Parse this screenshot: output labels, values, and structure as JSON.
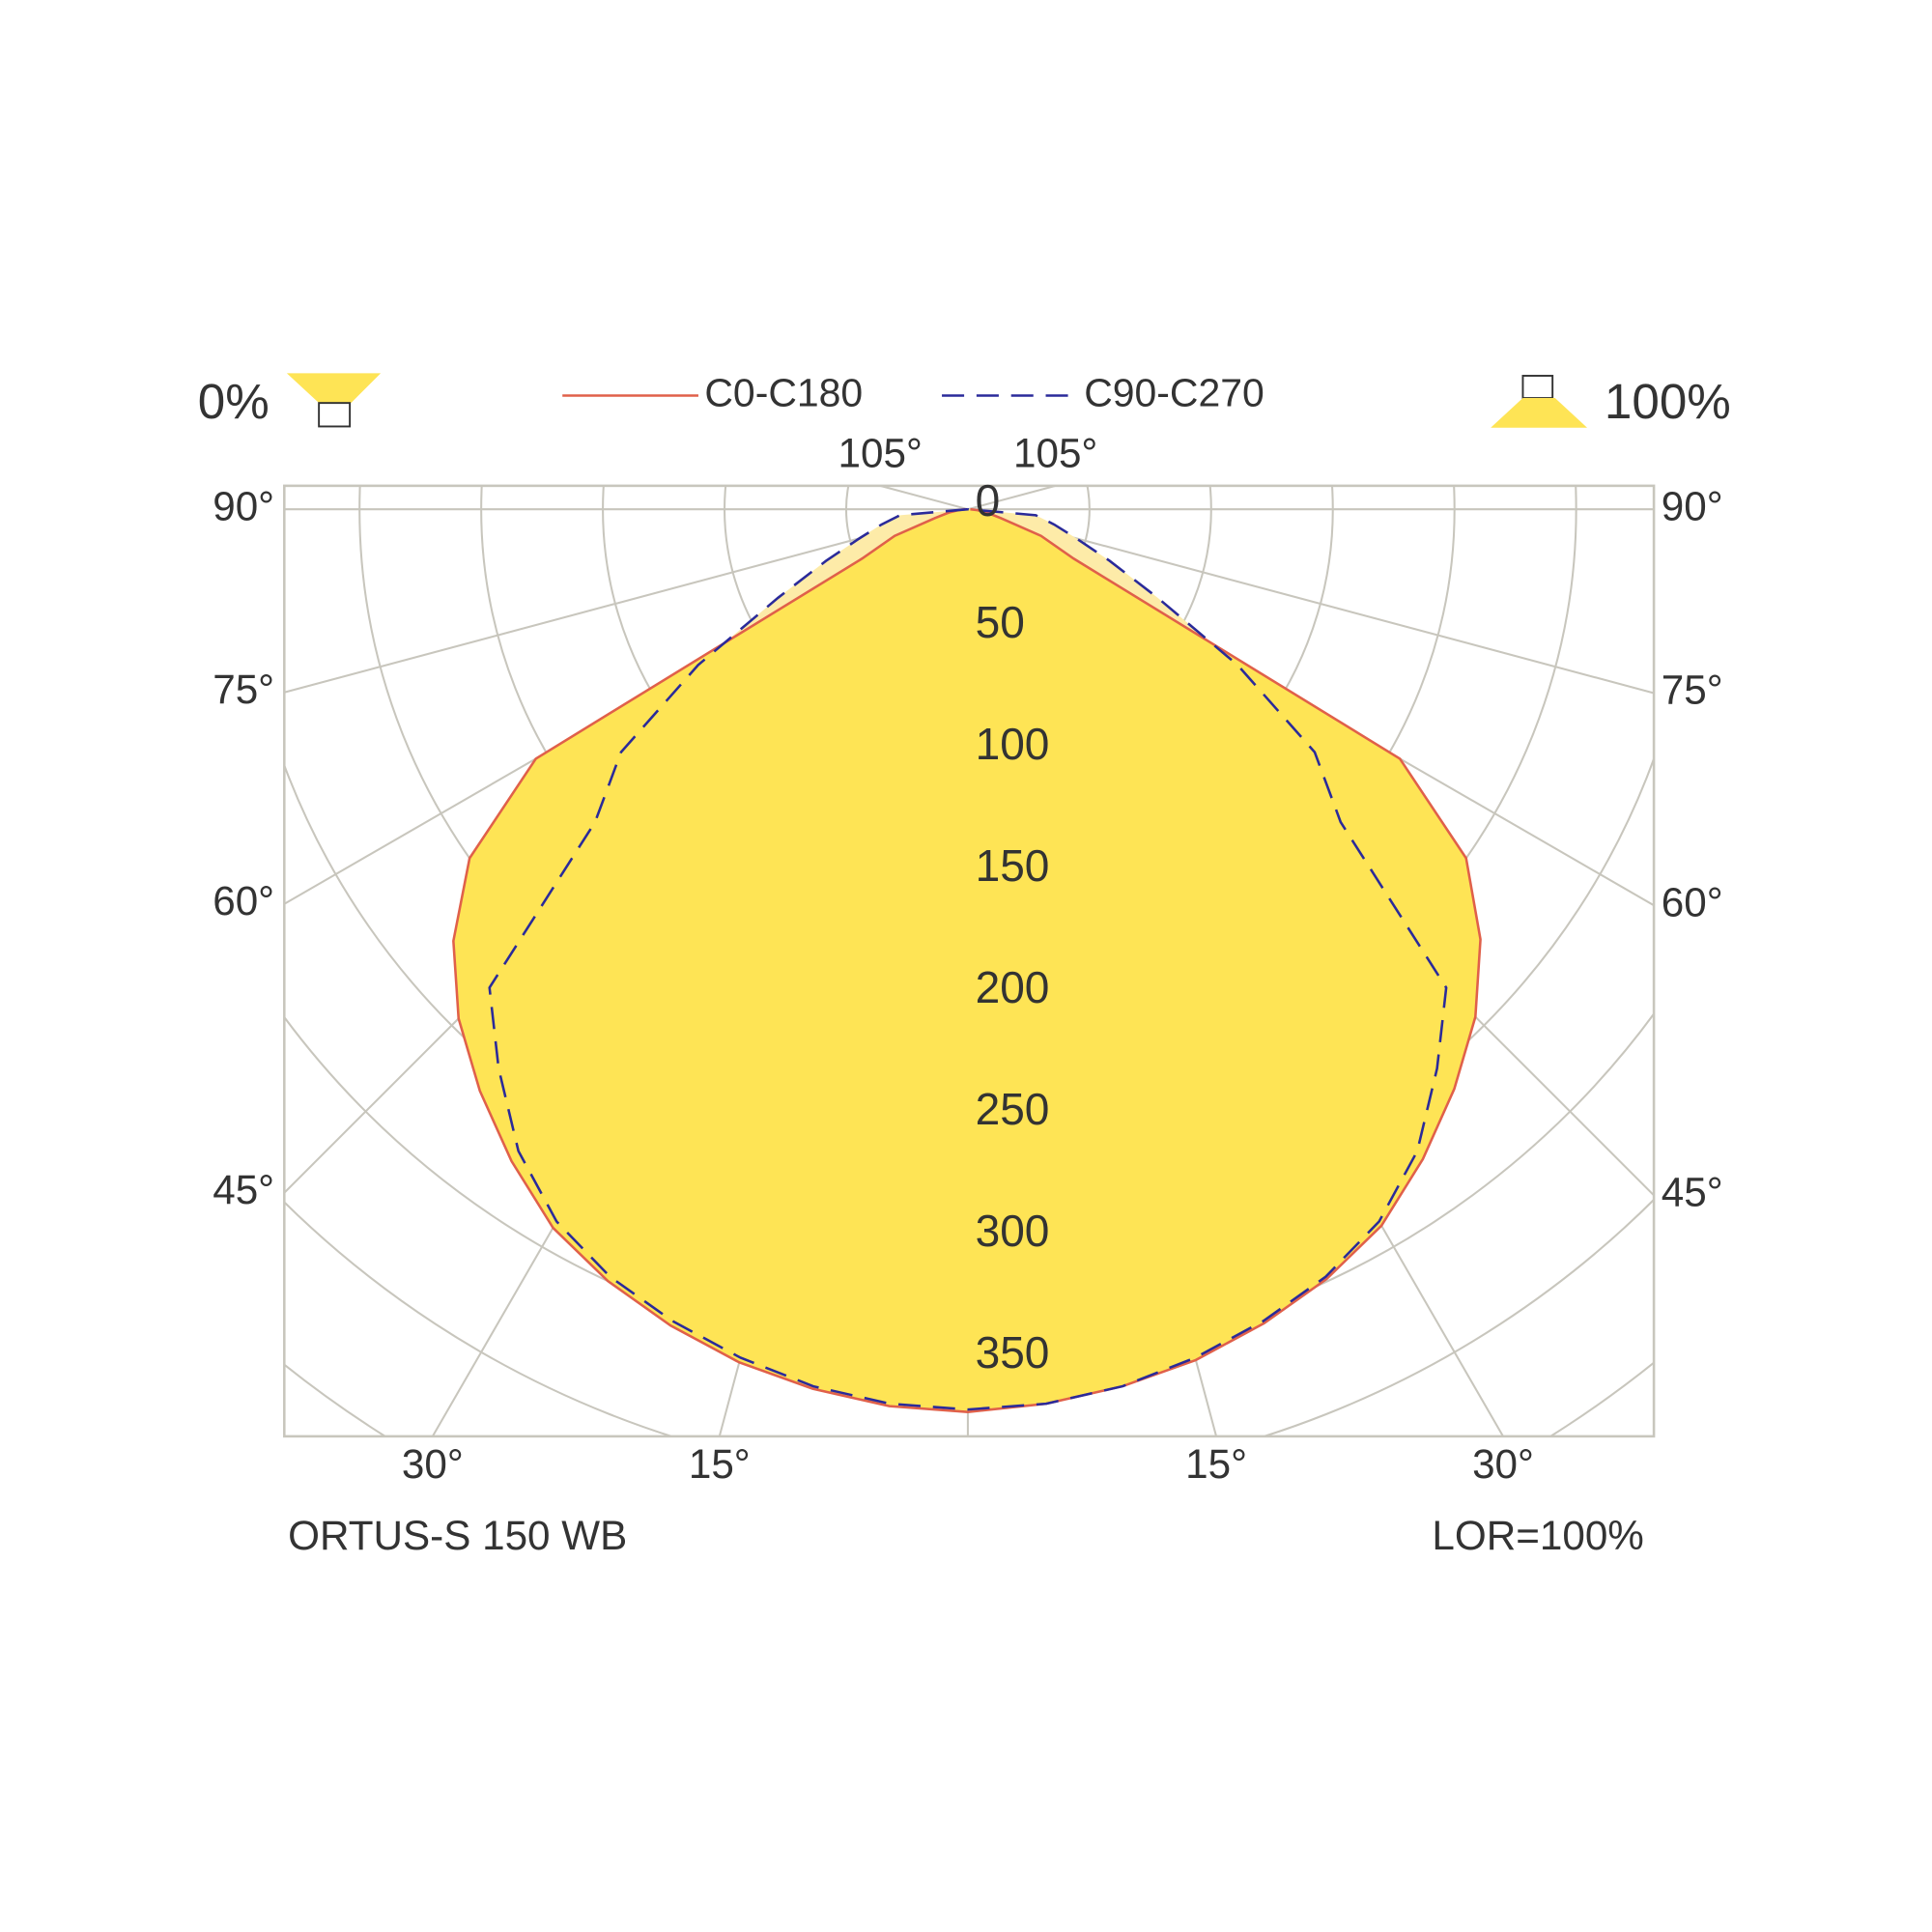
{
  "chart_data": {
    "type": "polar",
    "indicator_left": "0%",
    "indicator_right": "100%",
    "footer_left": "ORTUS-S 150 WB",
    "footer_right": "LOR=100%",
    "angles": [
      -90,
      -85,
      -80,
      -75,
      -70,
      -65,
      -60,
      -55,
      -50,
      -45,
      -40,
      -35,
      -30,
      -25,
      -20,
      -15,
      -10,
      -5,
      0,
      5,
      10,
      15,
      20,
      25,
      30,
      35,
      40,
      45,
      50,
      55,
      60,
      65,
      70,
      75,
      80,
      85,
      90
    ],
    "series": [
      {
        "name": "C0-C180",
        "color": "#e0604a",
        "fill": "#fee455",
        "style": "solid",
        "values": [
          1,
          4,
          8,
          14,
          32,
          48,
          205,
          250,
          276,
          296,
          312,
          327,
          341,
          350,
          357,
          363,
          367,
          370,
          371,
          369,
          366,
          362,
          356,
          349,
          340,
          326,
          311,
          295,
          275,
          250,
          205,
          48,
          32,
          14,
          8,
          4,
          1
        ]
      },
      {
        "name": "C90-C270",
        "color": "#2a2a9a",
        "fill": "#fdeba8",
        "style": "dashed",
        "values": [
          0,
          28,
          36,
          46,
          62,
          86,
          128,
          174,
          200,
          278,
          300,
          322,
          338,
          348,
          355,
          361,
          366,
          369,
          370,
          369,
          366,
          361,
          355,
          348,
          338,
          322,
          300,
          278,
          200,
          174,
          128,
          86,
          62,
          46,
          36,
          28,
          0
        ]
      }
    ],
    "rlim": [
      0,
      381
    ],
    "rticks": [
      0,
      50,
      100,
      150,
      200,
      250,
      300,
      350
    ],
    "angle_ticks": {
      "left": [
        {
          "value": 90,
          "label": "90°"
        },
        {
          "value": 75,
          "label": "75°"
        },
        {
          "value": 60,
          "label": "60°"
        },
        {
          "value": 45,
          "label": "45°"
        }
      ],
      "right": [
        {
          "value": 90,
          "label": "90°"
        },
        {
          "value": 75,
          "label": "75°"
        },
        {
          "value": 60,
          "label": "60°"
        },
        {
          "value": 45,
          "label": "45°"
        }
      ],
      "bottom_left": [
        {
          "value": 30,
          "label": "30°"
        },
        {
          "value": 15,
          "label": "15°"
        }
      ],
      "bottom_right": [
        {
          "value": 15,
          "label": "15°"
        },
        {
          "value": 30,
          "label": "30°"
        }
      ],
      "top_left": [
        {
          "value": 105,
          "label": "105°"
        }
      ],
      "top_right": [
        {
          "value": 105,
          "label": "105°"
        }
      ]
    },
    "grid": true
  }
}
